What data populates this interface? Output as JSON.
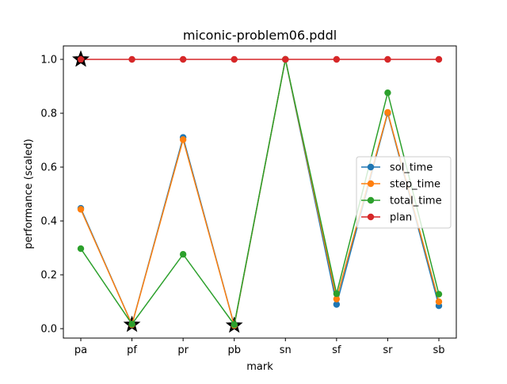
{
  "chart_data": {
    "type": "line",
    "title": "miconic-problem06.pddl",
    "xlabel": "mark",
    "ylabel": "performance (scaled)",
    "categories": [
      "pa",
      "pf",
      "pr",
      "pb",
      "sn",
      "sf",
      "sr",
      "sb"
    ],
    "ylim": [
      -0.035,
      1.05
    ],
    "yticks": [
      "0.0",
      "0.2",
      "0.4",
      "0.6",
      "0.8",
      "1.0"
    ],
    "grid": false,
    "legend_position": "center-right",
    "series": [
      {
        "name": "sol_time",
        "color": "#1f77b4",
        "values": [
          0.447,
          0.015,
          0.71,
          0.012,
          1.0,
          0.09,
          0.8,
          0.085
        ]
      },
      {
        "name": "step_time",
        "color": "#ff7f0e",
        "values": [
          0.443,
          0.015,
          0.702,
          0.012,
          1.0,
          0.11,
          0.803,
          0.1
        ]
      },
      {
        "name": "total_time",
        "color": "#2ca02c",
        "values": [
          0.297,
          0.017,
          0.276,
          0.015,
          1.0,
          0.13,
          0.876,
          0.128
        ]
      },
      {
        "name": "plan",
        "color": "#d62728",
        "values": [
          1.0,
          1.0,
          1.0,
          1.0,
          1.0,
          1.0,
          1.0,
          1.0
        ]
      }
    ],
    "best_markers": [
      {
        "category": "pa",
        "value": 1.0
      },
      {
        "category": "pf",
        "value": 0.015
      },
      {
        "category": "pb",
        "value": 0.012
      }
    ],
    "best_marker_icon": "star-icon"
  }
}
